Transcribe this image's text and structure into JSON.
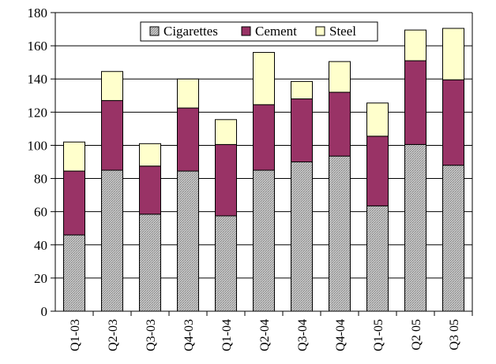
{
  "chart_data": {
    "type": "bar",
    "stacked": true,
    "categories": [
      "Q1-03",
      "Q2-03",
      "Q3-03",
      "Q4-03",
      "Q1-04",
      "Q2-04",
      "Q3-04",
      "Q4-04",
      "Q1-05",
      "Q2 05",
      "Q3 05"
    ],
    "series": [
      {
        "name": "Cigarettes",
        "color": "#b3b3b3",
        "pattern": "dotted-gray",
        "values": [
          46,
          85,
          58.5,
          84.5,
          57.5,
          85,
          90,
          93.5,
          63.5,
          100.5,
          88
        ]
      },
      {
        "name": "Cement",
        "color": "#993366",
        "values": [
          38.5,
          42,
          29,
          38,
          43,
          39.5,
          38,
          38.5,
          42,
          50.5,
          51.5
        ]
      },
      {
        "name": "Steel",
        "color": "#ffffcc",
        "values": [
          17.5,
          17.5,
          13.5,
          17.5,
          15,
          31.5,
          10.5,
          18.5,
          20,
          18.5,
          31
        ]
      }
    ],
    "title": "",
    "xlabel": "",
    "ylabel": "",
    "ylim": [
      0,
      180
    ],
    "yticks": [
      "0",
      "20",
      "40",
      "60",
      "80",
      "100",
      "120",
      "140",
      "160",
      "180"
    ],
    "grid": "horizontal",
    "legend": "top-center"
  }
}
